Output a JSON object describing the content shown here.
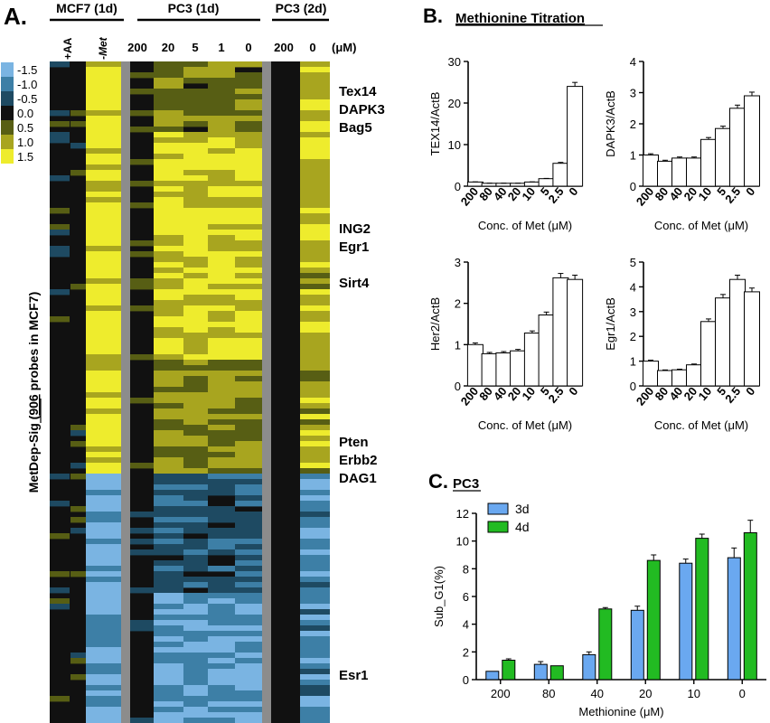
{
  "panelA": {
    "letter": "A.",
    "group_labels": [
      "MCF7 (1d)",
      "PC3 (1d)",
      "PC3 (2d)"
    ],
    "column_labels": [
      "+AA",
      "-Met",
      "200",
      "20",
      "5",
      "1",
      "0",
      "200",
      "0"
    ],
    "unit": "(μM)",
    "legend_values": [
      "-1.5",
      "-1.0",
      "-0.5",
      "0.0",
      "0.5",
      "1.0",
      "1.5"
    ],
    "legend_colors": [
      "#7ab4e2",
      "#3d7fa6",
      "#1e4a62",
      "#111111",
      "#575e14",
      "#a8a51f",
      "#eeec2d"
    ],
    "y_title_parts": [
      "MetDep-Sig (",
      "906",
      " probes in MCF7)"
    ],
    "gene_labels": [
      "Tex14",
      "DAPK3",
      "Bag5",
      "ING2",
      "Egr1",
      "Sirt4",
      "Pten",
      "Erbb2",
      "DAG1",
      "Esr1"
    ]
  },
  "panelB": {
    "letter": "B.",
    "title": "Methionine Titration"
  },
  "panelC": {
    "letter": "C.",
    "title": "PC3"
  },
  "chart_data": [
    {
      "type": "bar",
      "categories": [
        "200",
        "80",
        "40",
        "20",
        "10",
        "5",
        "2.5",
        "0"
      ],
      "values": [
        1,
        0.7,
        0.7,
        0.7,
        1,
        1.8,
        5.5,
        24
      ],
      "ylabel": "TEX14/ActB",
      "xlabel": "Conc. of Met (μM)",
      "ylim": [
        0,
        30
      ],
      "yticks": [
        "0",
        "10",
        "20",
        "30"
      ]
    },
    {
      "type": "bar",
      "categories": [
        "200",
        "80",
        "40",
        "20",
        "10",
        "5",
        "2.5",
        "0"
      ],
      "values": [
        1,
        0.8,
        0.9,
        0.9,
        1.5,
        1.85,
        2.5,
        2.9
      ],
      "ylabel": "DAPK3/ActB",
      "xlabel": "Conc. of Met (μM)",
      "ylim": [
        0,
        4
      ],
      "yticks": [
        "0",
        "1",
        "2",
        "3",
        "4"
      ]
    },
    {
      "type": "bar",
      "categories": [
        "200",
        "80",
        "40",
        "20",
        "10",
        "5",
        "2.5",
        "0"
      ],
      "values": [
        1,
        0.78,
        0.8,
        0.85,
        1.28,
        1.72,
        2.62,
        2.58
      ],
      "ylabel": "Her2/ActB",
      "xlabel": "Conc. of Met (μM)",
      "ylim": [
        0,
        3
      ],
      "yticks": [
        "0",
        "1",
        "2",
        "3"
      ]
    },
    {
      "type": "bar",
      "categories": [
        "200",
        "80",
        "40",
        "20",
        "10",
        "5",
        "2.5",
        "0"
      ],
      "values": [
        1,
        0.62,
        0.65,
        0.85,
        2.6,
        3.55,
        4.3,
        3.8
      ],
      "ylabel": "Egr1/ActB",
      "xlabel": "Conc. of Met (μM)",
      "ylim": [
        0,
        5
      ],
      "yticks": [
        "0",
        "1",
        "2",
        "3",
        "4",
        "5"
      ]
    },
    {
      "type": "bar",
      "categories": [
        "200",
        "80",
        "40",
        "20",
        "10",
        "0"
      ],
      "series": [
        {
          "name": "3d",
          "color": "#6aa8f0",
          "values": [
            0.6,
            1.1,
            1.8,
            5.0,
            8.4,
            8.8
          ]
        },
        {
          "name": "4d",
          "color": "#22bb22",
          "values": [
            1.4,
            1.0,
            5.1,
            8.6,
            10.2,
            10.6
          ]
        }
      ],
      "ylabel": "Sub_G1(%)",
      "xlabel": "Methionine (μM)",
      "ylim": [
        0,
        12
      ],
      "yticks": [
        "0",
        "2",
        "4",
        "6",
        "8",
        "10",
        "12"
      ]
    }
  ]
}
